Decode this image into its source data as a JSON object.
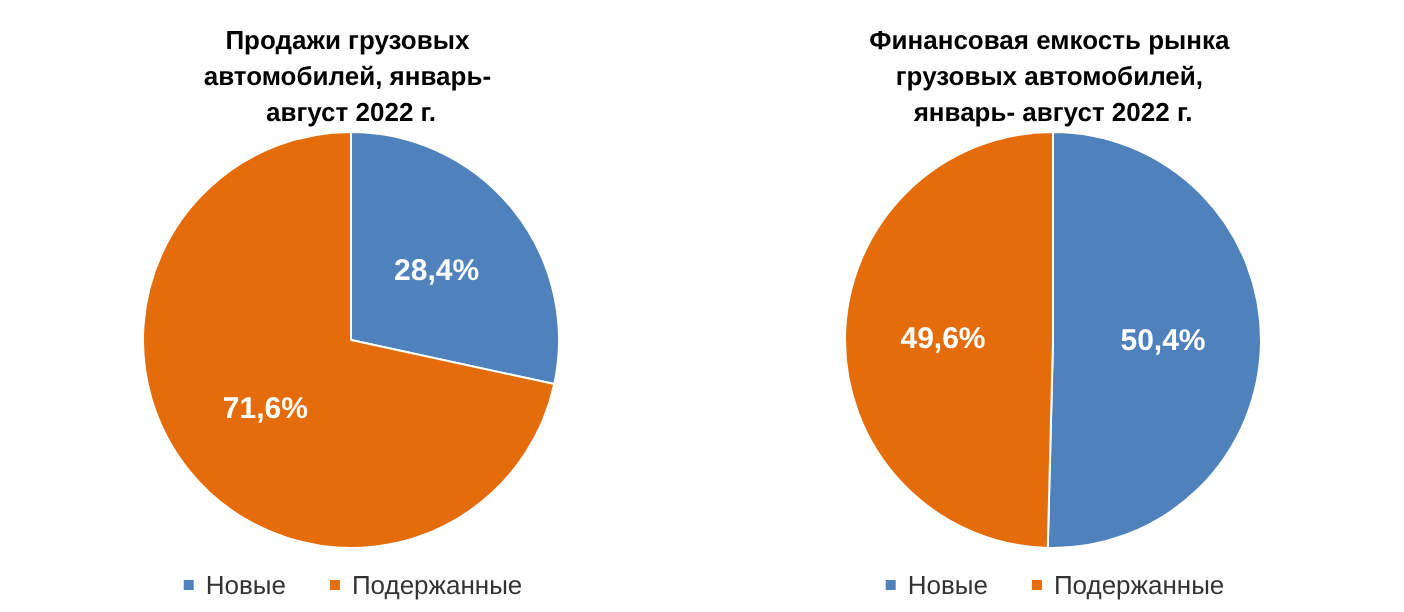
{
  "chart_data": [
    {
      "type": "pie",
      "title": "Продажи грузовых автомобилей, январь- август 2022 г.",
      "categories": [
        "Новые",
        "Подержанные"
      ],
      "values": [
        28.4,
        71.6
      ],
      "colors": [
        "#4f81bd",
        "#e46c0a"
      ],
      "value_labels": [
        "28,4%",
        "71,6%"
      ],
      "legend": "bottom"
    },
    {
      "type": "pie",
      "title": "Финансовая емкость рынка грузовых автомобилей, январь- август 2022 г.",
      "categories": [
        "Новые",
        "Подержанные"
      ],
      "values": [
        50.4,
        49.6
      ],
      "colors": [
        "#4f81bd",
        "#e46c0a"
      ],
      "value_labels": [
        "50,4%",
        "49,6%"
      ],
      "legend": "bottom"
    }
  ]
}
